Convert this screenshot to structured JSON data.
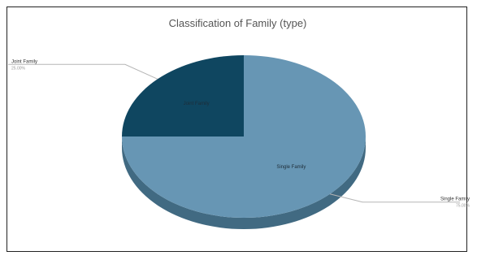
{
  "chart_data": {
    "type": "pie",
    "title": "Classification of Family (type)",
    "slices": [
      {
        "label": "Single Family",
        "value": 75,
        "value_label": "75.00%",
        "color": "#6796b4",
        "shade": "#416a82"
      },
      {
        "label": "Joint Family",
        "value": 25,
        "value_label": "25.00%",
        "color": "#0f4660",
        "shade": "#0b3345"
      }
    ],
    "legend": "none",
    "style": "3d"
  }
}
